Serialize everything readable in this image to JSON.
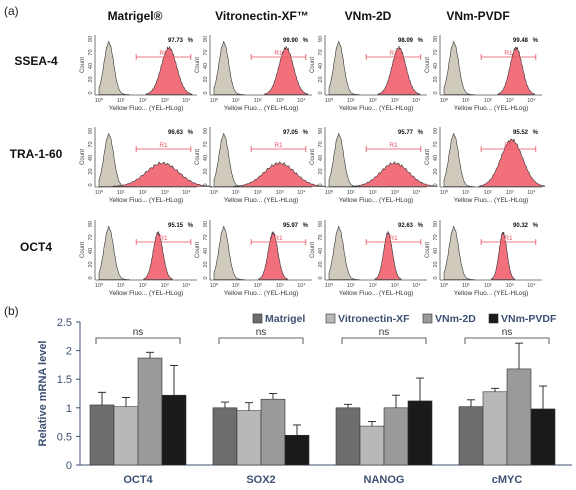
{
  "chart_data": [
    {
      "type": "histogram-grid",
      "panel_label": "(a)",
      "columns": [
        "Matrigel®",
        "Vitronectin-XF™",
        "VNm-2D",
        "VNm-PVDF"
      ],
      "rows": [
        "SSEA-4",
        "TRA-1-60",
        "OCT4"
      ],
      "xlabel": "Yellow Fluo... (YEL-HLog)",
      "ylabel": "Count",
      "y_ticks": [
        "0",
        "20",
        "40",
        "70",
        "90"
      ],
      "x_ticks": [
        "10⁰",
        "10¹",
        "10²",
        "10³",
        "10⁴"
      ],
      "gate_label": "R1",
      "percent_unit": "%",
      "percentages": [
        [
          "97.73",
          "99.90",
          "98.09",
          "99.48"
        ],
        [
          "96.63",
          "97.05",
          "95.77",
          "95.52"
        ],
        [
          "95.15",
          "95.97",
          "92.63",
          "90.32"
        ]
      ],
      "positive_peak_log": [
        [
          3.2,
          3.3,
          3.2,
          3.3
        ],
        [
          2.9,
          3.0,
          3.0,
          3.1
        ],
        [
          2.7,
          2.7,
          2.7,
          2.7
        ]
      ],
      "positive_peak_width": [
        [
          0.35,
          0.33,
          0.32,
          0.28
        ],
        [
          0.75,
          0.7,
          0.65,
          0.5
        ],
        [
          0.22,
          0.22,
          0.2,
          0.18
        ]
      ],
      "negative_peak_log": 0.45,
      "colors": {
        "negative_fill": "#cfcabc",
        "positive_fill": "#f26f7c",
        "gate_line": "#e8505f",
        "outline": "#333333"
      }
    },
    {
      "type": "bar",
      "panel_label": "(b)",
      "categories": [
        "OCT4",
        "SOX2",
        "NANOG",
        "cMYC"
      ],
      "series": [
        {
          "name": "Matrigel",
          "values": [
            1.05,
            1.0,
            1.0,
            1.02
          ],
          "errors": [
            0.22,
            0.1,
            0.06,
            0.12
          ],
          "color": "#6d6d6d"
        },
        {
          "name": "Vitronectin-XF",
          "values": [
            1.02,
            0.95,
            0.68,
            1.28
          ],
          "errors": [
            0.16,
            0.14,
            0.08,
            0.06
          ],
          "color": "#b8b8b8"
        },
        {
          "name": "VNm-2D",
          "values": [
            1.87,
            1.15,
            1.0,
            1.68
          ],
          "errors": [
            0.1,
            0.1,
            0.22,
            0.45
          ],
          "color": "#9a9a9a"
        },
        {
          "name": "VNm-PVDF",
          "values": [
            1.22,
            0.52,
            1.12,
            0.98
          ],
          "errors": [
            0.52,
            0.18,
            0.4,
            0.4
          ],
          "color": "#1a1a1a"
        }
      ],
      "significance_label": "ns",
      "ylabel": "Relative mRNA level",
      "ylim": [
        0,
        2.5
      ],
      "y_ticks": [
        0,
        0.5,
        1,
        1.5,
        2,
        2.5
      ],
      "legend_position": "top-right",
      "axis_color": "#3e5173"
    }
  ]
}
